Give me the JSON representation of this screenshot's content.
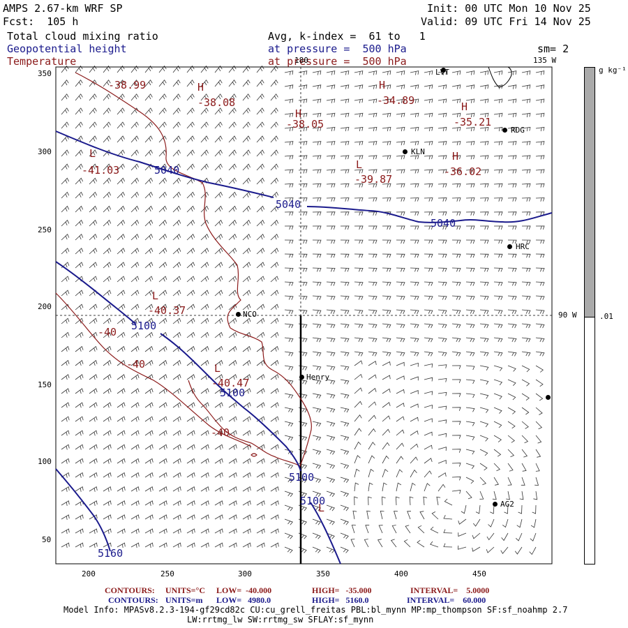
{
  "header": {
    "model": "AMPS 2.67-km WRF SP",
    "forecast": "Fcst:  105 h",
    "init": "Init: 00 UTC Mon 10 Nov 25",
    "valid": "Valid: 09 UTC Fri 14 Nov 25",
    "field1": "Total cloud mixing ratio",
    "field2": "Geopotential height",
    "field3": "Temperature",
    "avg": "Avg, k-index =  61 to   1",
    "pressure1": "at pressure =  500 hPa",
    "pressure2": "at pressure =  500 hPa",
    "sm": "sm= 2"
  },
  "map": {
    "lon_labels": [
      "180",
      "135 W",
      "90 W"
    ],
    "x_ticks": [
      "200",
      "250",
      "300",
      "350",
      "400",
      "450"
    ],
    "y_ticks": [
      "350",
      "300",
      "250",
      "200",
      "150",
      "100",
      "50"
    ],
    "stations": [
      "KLN",
      "RDG",
      "HRC",
      "NCO",
      "Henry",
      "AG2",
      "LVT"
    ],
    "height_labels": [
      "5040",
      "5040",
      "5040",
      "5100",
      "5100",
      "5100",
      "5100",
      "5160"
    ],
    "temp_labels": [
      "-38.99",
      "-38.08",
      "-38.05",
      "-34.89",
      "-35.21",
      "-41.03",
      "-39.87",
      "-36.02",
      "-40.37",
      "-40",
      "-40",
      "-40.47",
      "-40"
    ],
    "hl_markers": [
      "H",
      "H",
      "H",
      "H",
      "L",
      "L",
      "L",
      "H",
      "L",
      "L"
    ]
  },
  "colorbar": {
    "unit": "g kg⁻¹",
    "value": ".01"
  },
  "footer": {
    "contours_temp": {
      "label": "CONTOURS:",
      "units": "UNITS=°C",
      "low": "LOW=  -40.000",
      "high": "HIGH=   -35.000",
      "interval": "INTERVAL=    5.0000"
    },
    "contours_hgt": {
      "label": "CONTOURS:",
      "units": "UNITS=m",
      "low": "LOW=   4980.0",
      "high": "HIGH=   5160.0",
      "interval": "INTERVAL=    60.000"
    },
    "model_info": "Model Info: MPASv8.2.3-194-gf29cd82c CU:cu_grell_freitas PBL:bl_mynn MP:mp_thompson SF:sf_noahmp 2.7",
    "model_info2": "LW:rrtmg_lw SW:rrtmg_sw SFLAY:sf_mynn"
  }
}
